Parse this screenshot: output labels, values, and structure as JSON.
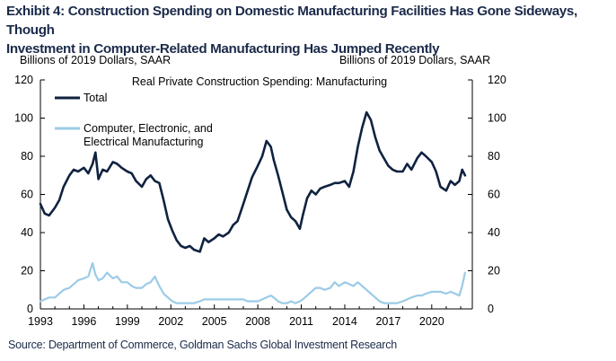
{
  "title_line1": "Exhibit 4: Construction Spending on Domestic Manufacturing Facilities Has Gone Sideways, Though",
  "title_line2": "Investment in Computer-Related Manufacturing Has Jumped Recently",
  "unit_left": "Billions of 2019 Dollars, SAAR",
  "unit_right": "Billions of 2019 Dollars, SAAR",
  "source": "Source: Department of Commerce, Goldman Sachs Global Investment Research",
  "colors": {
    "total": "#0f2240",
    "computer": "#9ccbe6"
  },
  "chart_data": {
    "type": "line",
    "title": "Real Private Construction Spending: Manufacturing",
    "xlabel": "",
    "ylabel": "Billions of 2019 Dollars, SAAR",
    "xlim": [
      1993,
      2022.8
    ],
    "ylim": [
      0,
      120
    ],
    "yticks": [
      0,
      20,
      40,
      60,
      80,
      100,
      120
    ],
    "xticks": [
      1993,
      1996,
      1999,
      2002,
      2005,
      2008,
      2011,
      2014,
      2017,
      2020
    ],
    "grid": false,
    "legend_position": "top-left",
    "series": [
      {
        "name": "Total",
        "x": [
          1993.0,
          1993.3,
          1993.6,
          1994.0,
          1994.3,
          1994.6,
          1995.0,
          1995.3,
          1995.6,
          1996.0,
          1996.3,
          1996.6,
          1996.8,
          1997.0,
          1997.3,
          1997.6,
          1998.0,
          1998.3,
          1998.6,
          1999.0,
          1999.3,
          1999.6,
          2000.0,
          2000.3,
          2000.6,
          2000.9,
          2001.2,
          2001.5,
          2001.8,
          2002.1,
          2002.4,
          2002.7,
          2003.0,
          2003.3,
          2003.6,
          2004.0,
          2004.3,
          2004.6,
          2005.0,
          2005.3,
          2005.6,
          2006.0,
          2006.3,
          2006.6,
          2007.0,
          2007.3,
          2007.6,
          2008.0,
          2008.3,
          2008.6,
          2008.9,
          2009.1,
          2009.4,
          2009.7,
          2010.0,
          2010.3,
          2010.6,
          2010.9,
          2011.1,
          2011.4,
          2011.7,
          2012.0,
          2012.3,
          2012.6,
          2013.0,
          2013.3,
          2013.6,
          2014.0,
          2014.3,
          2014.6,
          2014.9,
          2015.2,
          2015.5,
          2015.8,
          2016.1,
          2016.4,
          2016.7,
          2017.0,
          2017.3,
          2017.6,
          2018.0,
          2018.3,
          2018.6,
          2019.0,
          2019.3,
          2019.6,
          2020.0,
          2020.3,
          2020.6,
          2021.0,
          2021.3,
          2021.6,
          2021.9,
          2022.1,
          2022.3
        ],
        "values": [
          55,
          50,
          49,
          53,
          57,
          64,
          70,
          73,
          72,
          74,
          71,
          76,
          82,
          68,
          73,
          72,
          77,
          76,
          74,
          72,
          71,
          67,
          64,
          68,
          70,
          67,
          66,
          57,
          47,
          41,
          36,
          33,
          32,
          33,
          31,
          30,
          37,
          35,
          37,
          39,
          38,
          40,
          44,
          46,
          55,
          62,
          69,
          75,
          80,
          88,
          85,
          78,
          70,
          61,
          52,
          48,
          46,
          42,
          49,
          58,
          62,
          60,
          63,
          64,
          65,
          66,
          66,
          67,
          64,
          72,
          85,
          95,
          103,
          99,
          90,
          83,
          79,
          75,
          73,
          72,
          72,
          76,
          73,
          79,
          82,
          80,
          77,
          72,
          64,
          62,
          67,
          65,
          67,
          73,
          70
        ]
      },
      {
        "name": "Computer, Electronic, and Electrical Manufacturing",
        "x": [
          1993.0,
          1993.3,
          1993.6,
          1994.0,
          1994.3,
          1994.6,
          1995.0,
          1995.3,
          1995.6,
          1996.0,
          1996.3,
          1996.6,
          1996.8,
          1997.0,
          1997.3,
          1997.6,
          1998.0,
          1998.3,
          1998.6,
          1999.0,
          1999.3,
          1999.6,
          2000.0,
          2000.3,
          2000.6,
          2000.9,
          2001.2,
          2001.5,
          2001.8,
          2002.1,
          2002.4,
          2002.7,
          2003.0,
          2003.3,
          2003.6,
          2004.0,
          2004.3,
          2004.6,
          2005.0,
          2005.3,
          2005.6,
          2006.0,
          2006.3,
          2006.6,
          2007.0,
          2007.3,
          2007.6,
          2008.0,
          2008.3,
          2008.6,
          2008.9,
          2009.1,
          2009.4,
          2009.7,
          2010.0,
          2010.3,
          2010.6,
          2010.9,
          2011.1,
          2011.4,
          2011.7,
          2012.0,
          2012.3,
          2012.6,
          2013.0,
          2013.3,
          2013.6,
          2014.0,
          2014.3,
          2014.6,
          2014.9,
          2015.2,
          2015.5,
          2015.8,
          2016.1,
          2016.4,
          2016.7,
          2017.0,
          2017.3,
          2017.6,
          2018.0,
          2018.3,
          2018.6,
          2019.0,
          2019.3,
          2019.6,
          2020.0,
          2020.3,
          2020.6,
          2021.0,
          2021.3,
          2021.6,
          2021.9,
          2022.1,
          2022.3
        ],
        "values": [
          4,
          5,
          6,
          6,
          8,
          10,
          11,
          13,
          15,
          16,
          17,
          24,
          18,
          15,
          16,
          19,
          16,
          17,
          14,
          14,
          12,
          11,
          11,
          13,
          14,
          17,
          12,
          8,
          6,
          4,
          3,
          3,
          3,
          3,
          3,
          4,
          5,
          5,
          5,
          5,
          5,
          5,
          5,
          5,
          5,
          4,
          4,
          4,
          5,
          6,
          7,
          6,
          4,
          3,
          3,
          4,
          3,
          4,
          5,
          7,
          9,
          11,
          11,
          10,
          11,
          14,
          12,
          14,
          13,
          12,
          14,
          12,
          10,
          8,
          6,
          4,
          3,
          3,
          3,
          3,
          4,
          5,
          6,
          7,
          7,
          8,
          9,
          9,
          9,
          8,
          9,
          8,
          7,
          12,
          19
        ]
      }
    ]
  }
}
